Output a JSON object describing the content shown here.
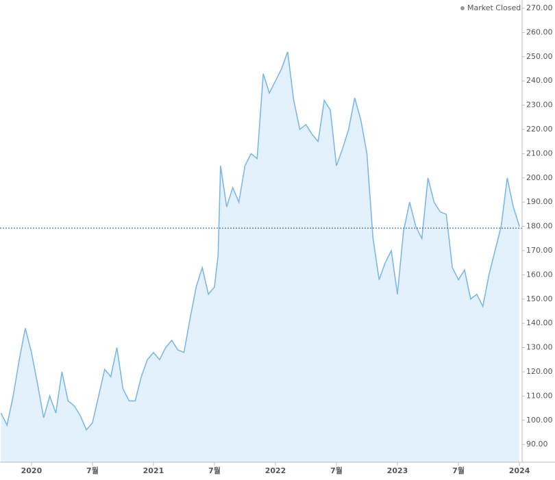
{
  "chart_data": {
    "type": "area",
    "status": "Market Closed",
    "x": [
      2019.75,
      2019.8,
      2019.85,
      2019.9,
      2019.95,
      2020.0,
      2020.05,
      2020.1,
      2020.15,
      2020.2,
      2020.25,
      2020.3,
      2020.35,
      2020.4,
      2020.45,
      2020.5,
      2020.55,
      2020.6,
      2020.65,
      2020.7,
      2020.75,
      2020.8,
      2020.85,
      2020.9,
      2020.95,
      2021.0,
      2021.05,
      2021.1,
      2021.15,
      2021.2,
      2021.25,
      2021.3,
      2021.35,
      2021.4,
      2021.45,
      2021.5,
      2021.53,
      2021.55,
      2021.6,
      2021.65,
      2021.7,
      2021.75,
      2021.8,
      2021.85,
      2021.9,
      2021.95,
      2022.0,
      2022.05,
      2022.1,
      2022.15,
      2022.2,
      2022.25,
      2022.3,
      2022.35,
      2022.4,
      2022.45,
      2022.5,
      2022.55,
      2022.6,
      2022.65,
      2022.7,
      2022.75,
      2022.8,
      2022.85,
      2022.9,
      2022.95,
      2023.0,
      2023.05,
      2023.1,
      2023.15,
      2023.2,
      2023.25,
      2023.3,
      2023.35,
      2023.4,
      2023.45,
      2023.5,
      2023.55,
      2023.6,
      2023.65,
      2023.7,
      2023.75,
      2023.8,
      2023.85,
      2023.9,
      2023.95,
      2024.0
    ],
    "values": [
      103,
      98,
      110,
      125,
      138,
      128,
      115,
      101,
      110,
      103,
      120,
      108,
      106,
      102,
      96,
      99,
      110,
      121,
      118,
      130,
      113,
      108,
      108,
      118,
      125,
      128,
      125,
      130,
      133,
      129,
      128,
      142,
      155,
      163,
      152,
      155,
      168,
      205,
      188,
      196,
      190,
      205,
      210,
      208,
      243,
      235,
      240,
      245,
      252,
      232,
      220,
      222,
      218,
      215,
      232,
      228,
      205,
      212,
      220,
      233,
      224,
      210,
      175,
      158,
      165,
      170,
      152,
      178,
      190,
      180,
      175,
      200,
      190,
      186,
      185,
      163,
      158,
      162,
      150,
      152,
      147,
      160,
      170,
      180,
      200,
      188,
      180
    ],
    "color": "#7db7e8",
    "fill": "#e2f1fb",
    "xlim": [
      2019.742,
      2024.022
    ],
    "xticks": [
      {
        "value": 2020,
        "label": "2020"
      },
      {
        "value": 2020.5,
        "label": "7월"
      },
      {
        "value": 2021,
        "label": "2021"
      },
      {
        "value": 2021.5,
        "label": "7월"
      },
      {
        "value": 2022,
        "label": "2022"
      },
      {
        "value": 2022.5,
        "label": "7월"
      },
      {
        "value": 2023,
        "label": "2023"
      },
      {
        "value": 2023.5,
        "label": "7월"
      },
      {
        "value": 2024,
        "label": "2024"
      }
    ],
    "ylim": [
      82.7,
      273.4
    ],
    "yticks": [
      {
        "value": 90,
        "label": "90.00"
      },
      {
        "value": 100,
        "label": "100.00"
      },
      {
        "value": 110,
        "label": "110.00"
      },
      {
        "value": 120,
        "label": "120.00"
      },
      {
        "value": 130,
        "label": "130.00"
      },
      {
        "value": 140,
        "label": "140.00"
      },
      {
        "value": 150,
        "label": "150.00"
      },
      {
        "value": 160,
        "label": "160.00"
      },
      {
        "value": 170,
        "label": "170.00"
      },
      {
        "value": 180,
        "label": "180.00"
      },
      {
        "value": 190,
        "label": "190.00"
      },
      {
        "value": 200,
        "label": "200.00"
      },
      {
        "value": 210,
        "label": "210.00"
      },
      {
        "value": 220,
        "label": "220.00"
      },
      {
        "value": 230,
        "label": "230.00"
      },
      {
        "value": 240,
        "label": "240.00"
      },
      {
        "value": 250,
        "label": "250.00"
      },
      {
        "value": 260,
        "label": "260.00"
      },
      {
        "value": 270,
        "label": "270.00"
      }
    ],
    "reference_line": 179.3
  }
}
